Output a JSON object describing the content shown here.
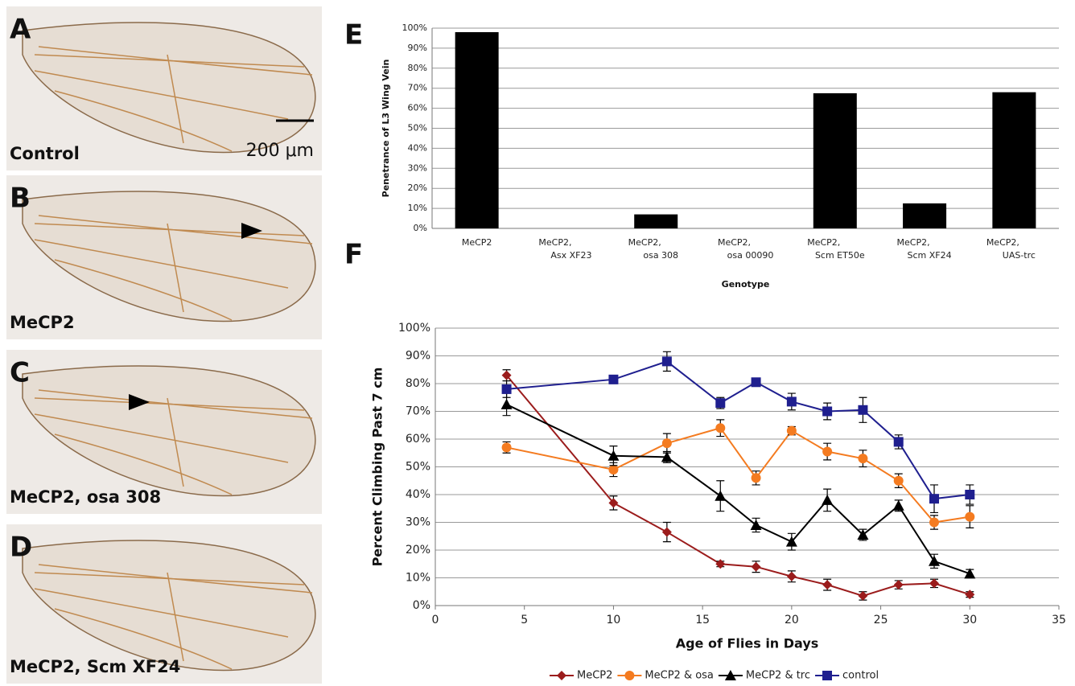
{
  "panels": [
    {
      "label": "A",
      "caption": "Control",
      "scale": "200 μm"
    },
    {
      "label": "B",
      "caption": "MeCP2"
    },
    {
      "label": "C",
      "caption": "MeCP2, osa 308"
    },
    {
      "label": "D",
      "caption": "MeCP2, Scm XF24"
    }
  ],
  "chart_data": [
    {
      "type": "bar",
      "label": "E",
      "y_label": "Penetrance of L3 Wing Vein",
      "x_label": "Genotype",
      "categories": [
        "MeCP2",
        "MeCP2, Asx XF23",
        "MeCP2, osa 308",
        "MeCP2, osa 00090",
        "MeCP2, Scm ET50e",
        "MeCP2, Scm XF24",
        "MeCP2, UAS-trc"
      ],
      "values": [
        98,
        0,
        7,
        0,
        67.5,
        12.5,
        68
      ],
      "color": "#000000",
      "ylim": [
        0,
        100
      ],
      "yticks": [
        {
          "value": 0,
          "label": "0%"
        },
        {
          "value": 10,
          "label": "10%"
        },
        {
          "value": 20,
          "label": "20%"
        },
        {
          "value": 30,
          "label": "30%"
        },
        {
          "value": 40,
          "label": "40%"
        },
        {
          "value": 50,
          "label": "50%"
        },
        {
          "value": 60,
          "label": "60%"
        },
        {
          "value": 70,
          "label": "70%"
        },
        {
          "value": 80,
          "label": "80%"
        },
        {
          "value": 90,
          "label": "90%"
        },
        {
          "value": 100,
          "label": "100%"
        }
      ],
      "grid": true
    },
    {
      "type": "line",
      "label": "F",
      "y_label": "Percent Climbing Past 7 cm",
      "x_label": "Age of Flies in Days",
      "x": [
        4,
        10,
        13,
        16,
        18,
        20,
        22,
        24,
        26,
        28,
        30
      ],
      "series": [
        {
          "name": "MeCP2",
          "color": "#9b1c1c",
          "marker": "diamond",
          "values": [
            83,
            37,
            26.5,
            15,
            14,
            10.5,
            7.5,
            3.5,
            7.5,
            8,
            4
          ],
          "errors": [
            2,
            2.5,
            3.5,
            1,
            2,
            2,
            2,
            1.5,
            1.5,
            1.5,
            1
          ]
        },
        {
          "name": "MeCP2 & osa",
          "color": "#f47b20",
          "marker": "circle",
          "values": [
            57,
            49,
            58.5,
            64,
            46,
            63,
            55.5,
            53,
            45,
            30,
            32
          ],
          "errors": [
            2,
            2.5,
            3.5,
            3,
            2.5,
            1.5,
            3,
            3,
            2.5,
            2.5,
            4
          ]
        },
        {
          "name": "MeCP2 & trc",
          "color": "#000000",
          "marker": "triangle",
          "values": [
            72.5,
            54,
            53.5,
            39.5,
            29,
            23,
            38,
            25.5,
            36,
            16,
            11.5
          ],
          "errors": [
            4,
            3.5,
            2,
            5.5,
            2.5,
            3,
            4,
            2,
            2,
            2.5,
            1.5
          ]
        },
        {
          "name": "control",
          "color": "#1f1f8f",
          "marker": "square",
          "values": [
            78,
            81.5,
            88,
            73,
            80.5,
            73.5,
            70,
            70.5,
            59,
            38.5,
            40
          ],
          "errors": [
            3,
            1.5,
            3.5,
            2,
            1.5,
            3,
            3,
            4.5,
            2.5,
            5,
            3.5
          ]
        }
      ],
      "xlim": [
        0,
        35
      ],
      "xticks": [
        0,
        5,
        10,
        15,
        20,
        25,
        30,
        35
      ],
      "ylim": [
        0,
        100
      ],
      "yticks": [
        {
          "value": 0,
          "label": "0%"
        },
        {
          "value": 10,
          "label": "10%"
        },
        {
          "value": 20,
          "label": "20%"
        },
        {
          "value": 30,
          "label": "30%"
        },
        {
          "value": 40,
          "label": "40%"
        },
        {
          "value": 50,
          "label": "50%"
        },
        {
          "value": 60,
          "label": "60%"
        },
        {
          "value": 70,
          "label": "70%"
        },
        {
          "value": 80,
          "label": "80%"
        },
        {
          "value": 90,
          "label": "90%"
        },
        {
          "value": 100,
          "label": "100%"
        }
      ],
      "grid": true,
      "legend": "bottom"
    }
  ]
}
